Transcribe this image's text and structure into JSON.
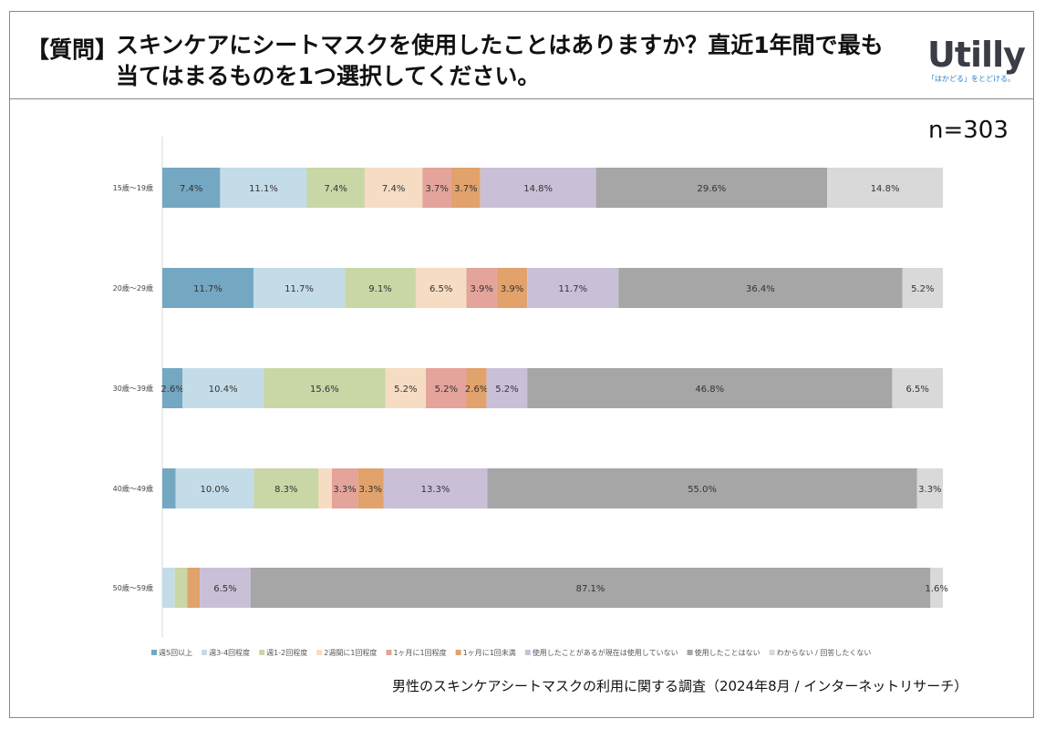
{
  "header": {
    "tag": "【質問】",
    "lines": [
      "スキンケアにシートマスクを使用したことはありますか？直近1年間で最も",
      "当てはまるものを1つ選択してください。"
    ],
    "logo": "Utilly",
    "logo_tagline": "「はかどる」をとどける。"
  },
  "n_label": "n=303",
  "source": "男性のスキンケアシートマスクの利用に関する調査（2024年8月 / インターネットリサーチ）",
  "colors": {
    "s1": "#74a7c2",
    "s2": "#c4dce7",
    "s3": "#c9d6a6",
    "s4": "#f5dcc2",
    "s5": "#e4a39b",
    "s6": "#e1a26c",
    "s7": "#c9c0d7",
    "s8": "#a6a6a6",
    "s9": "#d9d9d9",
    "axis": "#d9d9d9"
  },
  "chart_data": {
    "type": "bar",
    "orientation": "horizontal",
    "stacked": "percent",
    "categories": [
      "15歳～19歳",
      "20歳～29歳",
      "30歳～39歳",
      "40歳～49歳",
      "50歳～59歳"
    ],
    "series": [
      {
        "name": "週5回以上",
        "values": [
          7.4,
          11.7,
          2.6,
          1.7,
          0.0
        ],
        "labels": [
          "7.4%",
          "11.7%",
          "2.6%",
          "",
          ""
        ]
      },
      {
        "name": "週3-4回程度",
        "values": [
          11.1,
          11.7,
          10.4,
          10.0,
          1.6
        ],
        "labels": [
          "11.1%",
          "11.7%",
          "10.4%",
          "10.0%",
          ""
        ]
      },
      {
        "name": "週1-2回程度",
        "values": [
          7.4,
          9.1,
          15.6,
          8.3,
          1.6
        ],
        "labels": [
          "7.4%",
          "9.1%",
          "15.6%",
          "8.3%",
          ""
        ]
      },
      {
        "name": "2週間に1回程度",
        "values": [
          7.4,
          6.5,
          5.2,
          1.7,
          0.0
        ],
        "labels": [
          "7.4%",
          "6.5%",
          "5.2%",
          "",
          ""
        ]
      },
      {
        "name": "1ヶ月に1回程度",
        "values": [
          3.7,
          3.9,
          5.2,
          3.3,
          0.0
        ],
        "labels": [
          "3.7%",
          "3.9%",
          "5.2%",
          "3.3%",
          ""
        ]
      },
      {
        "name": "1ヶ月に1回未満",
        "values": [
          3.7,
          3.9,
          2.6,
          3.3,
          1.6
        ],
        "labels": [
          "3.7%",
          "3.9%",
          "2.6%",
          "3.3%",
          ""
        ]
      },
      {
        "name": "使用したことがあるが現在は使用していない",
        "values": [
          14.8,
          11.7,
          5.2,
          13.3,
          6.5
        ],
        "labels": [
          "14.8%",
          "11.7%",
          "5.2%",
          "13.3%",
          "6.5%"
        ]
      },
      {
        "name": "使用したことはない",
        "values": [
          29.6,
          36.4,
          46.8,
          55.0,
          87.1
        ],
        "labels": [
          "29.6%",
          "36.4%",
          "46.8%",
          "55.0%",
          "87.1%"
        ]
      },
      {
        "name": "わからない / 回答したくない",
        "values": [
          14.8,
          5.2,
          6.5,
          3.3,
          1.6
        ],
        "labels": [
          "14.8%",
          "5.2%",
          "6.5%",
          "3.3%",
          "1.6%"
        ]
      }
    ],
    "xlim": [
      0,
      100
    ],
    "legend": "bottom"
  }
}
